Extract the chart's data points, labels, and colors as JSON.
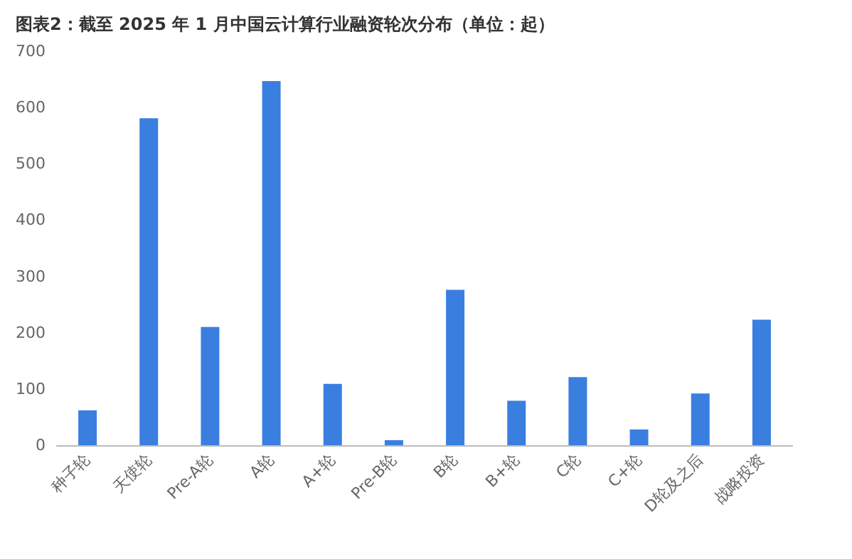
{
  "chart_data": {
    "type": "bar",
    "title": "图表2：截至 2025 年 1 月中国云计算行业融资轮次分布（单位：起）",
    "categories": [
      "种子轮",
      "天使轮",
      "Pre-A轮",
      "A轮",
      "A+轮",
      "Pre-B轮",
      "B轮",
      "B+轮",
      "C轮",
      "C+轮",
      "D轮及之后",
      "战略投资"
    ],
    "values": [
      62,
      581,
      210,
      647,
      109,
      9,
      276,
      79,
      121,
      28,
      92,
      223
    ],
    "color": "#3a7fe0",
    "ylim": [
      0,
      700
    ],
    "yticks": [
      0,
      100,
      200,
      300,
      400,
      500,
      600,
      700
    ],
    "grid": false
  }
}
